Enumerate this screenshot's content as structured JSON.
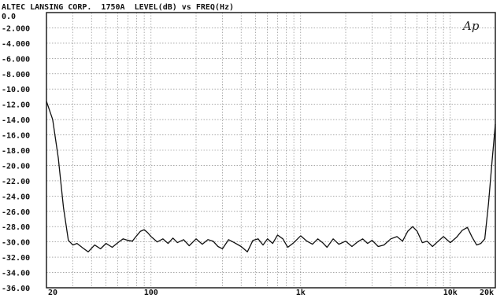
{
  "chart_data": {
    "type": "line",
    "title": "ALTEC LANSING CORP.  1750A  LEVEL(dB) vs FREQ(Hz)",
    "logo": "Ap",
    "xlabel": "",
    "ylabel": "",
    "x_scale": "log",
    "xlim": [
      20,
      20000
    ],
    "ylim": [
      -36,
      0
    ],
    "grid": true,
    "y_ticks": [
      {
        "value": 0,
        "label": "0.0"
      },
      {
        "value": -2,
        "label": "-2.000"
      },
      {
        "value": -4,
        "label": "-4.000"
      },
      {
        "value": -6,
        "label": "-6.000"
      },
      {
        "value": -8,
        "label": "-8.000"
      },
      {
        "value": -10,
        "label": "-10.00"
      },
      {
        "value": -12,
        "label": "-12.00"
      },
      {
        "value": -14,
        "label": "-14.00"
      },
      {
        "value": -16,
        "label": "-16.00"
      },
      {
        "value": -18,
        "label": "-18.00"
      },
      {
        "value": -20,
        "label": "-20.00"
      },
      {
        "value": -22,
        "label": "-22.00"
      },
      {
        "value": -24,
        "label": "-24.00"
      },
      {
        "value": -26,
        "label": "-26.00"
      },
      {
        "value": -28,
        "label": "-28.00"
      },
      {
        "value": -30,
        "label": "-30.00"
      },
      {
        "value": -32,
        "label": "-32.00"
      },
      {
        "value": -34,
        "label": "-34.00"
      },
      {
        "value": -36,
        "label": "-36.00"
      }
    ],
    "x_ticks": [
      {
        "value": 20,
        "label": "20"
      },
      {
        "value": 100,
        "label": "100"
      },
      {
        "value": 1000,
        "label": "1k"
      },
      {
        "value": 10000,
        "label": "10k"
      },
      {
        "value": 20000,
        "label": "20k"
      }
    ],
    "series": [
      {
        "color": "#111111",
        "x": [
          20,
          22,
          24,
          26,
          28,
          30,
          32,
          35,
          38,
          42,
          46,
          50,
          55,
          60,
          65,
          70,
          75,
          80,
          85,
          90,
          95,
          100,
          110,
          120,
          130,
          140,
          150,
          165,
          180,
          200,
          220,
          240,
          260,
          280,
          300,
          330,
          360,
          400,
          440,
          480,
          520,
          560,
          600,
          650,
          700,
          760,
          820,
          900,
          1000,
          1100,
          1200,
          1300,
          1400,
          1500,
          1650,
          1800,
          2000,
          2200,
          2400,
          2600,
          2800,
          3000,
          3300,
          3600,
          4000,
          4400,
          4800,
          5200,
          5600,
          6000,
          6500,
          7000,
          7600,
          8200,
          9000,
          10000,
          11000,
          12000,
          13000,
          14000,
          15000,
          16000,
          17000,
          18000,
          19000,
          20000
        ],
        "y": [
          -11.6,
          -14.0,
          -19.0,
          -25.5,
          -29.8,
          -30.4,
          -30.2,
          -30.8,
          -31.3,
          -30.4,
          -30.9,
          -30.2,
          -30.7,
          -30.1,
          -29.6,
          -29.8,
          -29.9,
          -29.2,
          -28.6,
          -28.4,
          -28.8,
          -29.3,
          -30.0,
          -29.6,
          -30.2,
          -29.5,
          -30.1,
          -29.7,
          -30.5,
          -29.6,
          -30.3,
          -29.7,
          -29.9,
          -30.6,
          -30.9,
          -29.7,
          -30.1,
          -30.6,
          -31.3,
          -29.8,
          -29.6,
          -30.4,
          -29.6,
          -30.2,
          -29.1,
          -29.6,
          -30.7,
          -30.1,
          -29.2,
          -29.9,
          -30.3,
          -29.6,
          -30.1,
          -30.7,
          -29.6,
          -30.3,
          -29.9,
          -30.6,
          -30.0,
          -29.6,
          -30.2,
          -29.8,
          -30.6,
          -30.4,
          -29.6,
          -29.3,
          -29.9,
          -28.6,
          -28.0,
          -28.6,
          -30.1,
          -29.9,
          -30.6,
          -30.0,
          -29.3,
          -30.1,
          -29.4,
          -28.5,
          -28.1,
          -29.4,
          -30.4,
          -30.2,
          -29.6,
          -25.0,
          -19.5,
          -14.6
        ]
      }
    ]
  }
}
